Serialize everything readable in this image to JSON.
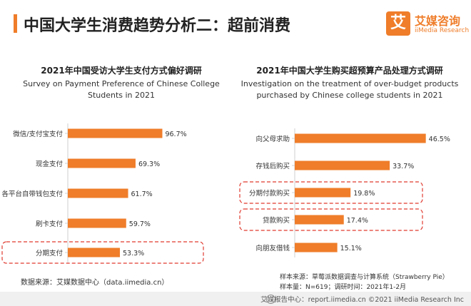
{
  "header": {
    "title": "中国大学生消费趋势分析二：超前消费",
    "logo_char": "艾",
    "logo_cn": "艾媒咨询",
    "logo_en": "iiMedia Research"
  },
  "colors": {
    "bar": "#ef7d2a",
    "highlight": "#e03a2f",
    "accent": "#ef7d2a"
  },
  "chart_data": [
    {
      "type": "bar",
      "orientation": "horizontal",
      "title": "2021年中国受访大学生支付方式偏好调研",
      "subtitle": "Survey on Payment Preference of Chinese College Students in 2021",
      "categories": [
        "微信/支付宝支付",
        "现金支付",
        "各平台自带钱包支付",
        "刷卡支付",
        "分期支付"
      ],
      "values": [
        96.7,
        69.3,
        61.7,
        59.7,
        53.3
      ],
      "data_labels": [
        "96.7%",
        "69.3%",
        "61.7%",
        "59.7%",
        "53.3%"
      ],
      "highlighted": [
        "分期支付"
      ],
      "grid": false
    },
    {
      "type": "bar",
      "orientation": "horizontal",
      "title": "2021年中国大学生购买超预算产品处理方式调研",
      "subtitle": "Investigation on the treatment of over-budget products purchased by Chinese college students in 2021",
      "categories": [
        "向父母求助",
        "存钱后购买",
        "分期付款购买",
        "贷款购买",
        "向朋友借钱"
      ],
      "values": [
        46.5,
        33.7,
        19.8,
        17.4,
        15.1
      ],
      "data_labels": [
        "46.5%",
        "33.7%",
        "19.8%",
        "17.4%",
        "15.1%"
      ],
      "highlighted": [
        "分期付款购买",
        "贷款购买"
      ],
      "grid": false
    }
  ],
  "footer": {
    "source_left": "数据来源：艾媒数据中心（data.iimedia.cn）",
    "sample_source": "样本来源：草莓派数据调查与计算系统（Strawberry Pie）",
    "sample_size": "样本量：N=619；调研时间：2021年1-2月",
    "bottom_bar": "艾媒报告中心：report.iimedia.cn  ©2021  iiMedia Research  Inc"
  }
}
